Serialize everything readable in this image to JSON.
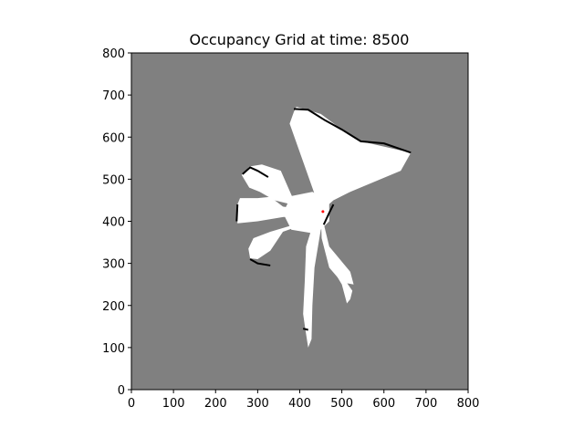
{
  "chart_data": {
    "type": "heatmap",
    "title": "Occupancy Grid at time: 8500",
    "xlabel": "",
    "ylabel": "",
    "xlim": [
      0,
      800
    ],
    "ylim": [
      0,
      800
    ],
    "x_ticks": [
      0,
      100,
      200,
      300,
      400,
      500,
      600,
      700,
      800
    ],
    "y_ticks": [
      0,
      100,
      200,
      300,
      400,
      500,
      600,
      700,
      800
    ],
    "grid": false,
    "colors": {
      "unknown": "#808080",
      "free": "#ffffff",
      "occupied": "#000000",
      "robot": "#ff0000"
    },
    "robot_position": [
      455,
      423
    ],
    "free_regions": [
      {
        "name": "north-east-sector",
        "points": [
          [
            450,
            423
          ],
          [
            376,
            632
          ],
          [
            386,
            660
          ],
          [
            392,
            672
          ],
          [
            450,
            655
          ],
          [
            500,
            618
          ],
          [
            545,
            590
          ],
          [
            664,
            563
          ],
          [
            640,
            520
          ],
          [
            520,
            470
          ],
          [
            480,
            450
          ]
        ]
      },
      {
        "name": "north-west-lobe",
        "points": [
          [
            450,
            423
          ],
          [
            390,
            440
          ],
          [
            355,
            520
          ],
          [
            310,
            535
          ],
          [
            280,
            530
          ],
          [
            262,
            510
          ],
          [
            280,
            480
          ],
          [
            305,
            470
          ],
          [
            340,
            450
          ]
        ]
      },
      {
        "name": "west-arm",
        "points": [
          [
            450,
            423
          ],
          [
            420,
            425
          ],
          [
            360,
            435
          ],
          [
            330,
            458
          ],
          [
            300,
            455
          ],
          [
            258,
            455
          ],
          [
            250,
            435
          ],
          [
            252,
            395
          ],
          [
            300,
            400
          ],
          [
            360,
            410
          ],
          [
            430,
            415
          ]
        ]
      },
      {
        "name": "south-west-lobe",
        "points": [
          [
            450,
            423
          ],
          [
            430,
            400
          ],
          [
            360,
            375
          ],
          [
            330,
            330
          ],
          [
            300,
            310
          ],
          [
            282,
            312
          ],
          [
            278,
            335
          ],
          [
            290,
            360
          ],
          [
            330,
            375
          ],
          [
            380,
            390
          ]
        ]
      },
      {
        "name": "south-arm",
        "points": [
          [
            440,
            420
          ],
          [
            415,
            340
          ],
          [
            412,
            260
          ],
          [
            408,
            180
          ],
          [
            413,
            145
          ],
          [
            420,
            100
          ],
          [
            428,
            120
          ],
          [
            430,
            200
          ],
          [
            435,
            290
          ],
          [
            450,
            380
          ]
        ]
      },
      {
        "name": "south-east-beam",
        "points": [
          [
            450,
            423
          ],
          [
            470,
            340
          ],
          [
            520,
            280
          ],
          [
            528,
            250
          ],
          [
            500,
            255
          ],
          [
            470,
            290
          ],
          [
            452,
            360
          ]
        ]
      },
      {
        "name": "south-east-spokes",
        "points": [
          [
            470,
            300
          ],
          [
            500,
            250
          ],
          [
            512,
            205
          ],
          [
            520,
            215
          ],
          [
            525,
            235
          ],
          [
            490,
            285
          ]
        ]
      },
      {
        "name": "center-hub",
        "points": [
          [
            380,
            380
          ],
          [
            440,
            370
          ],
          [
            470,
            400
          ],
          [
            470,
            450
          ],
          [
            430,
            470
          ],
          [
            380,
            460
          ],
          [
            360,
            420
          ]
        ]
      }
    ],
    "occupied_edges": [
      {
        "name": "north-east-wall",
        "points": [
          [
            386,
            667
          ],
          [
            420,
            665
          ],
          [
            460,
            640
          ],
          [
            500,
            618
          ],
          [
            545,
            590
          ],
          [
            600,
            585
          ],
          [
            650,
            568
          ],
          [
            664,
            563
          ]
        ]
      },
      {
        "name": "north-west-wall",
        "points": [
          [
            264,
            512
          ],
          [
            282,
            528
          ],
          [
            300,
            520
          ],
          [
            325,
            505
          ]
        ]
      },
      {
        "name": "west-wall",
        "points": [
          [
            252,
            440
          ],
          [
            250,
            400
          ]
        ]
      },
      {
        "name": "south-west-wall",
        "points": [
          [
            282,
            310
          ],
          [
            300,
            300
          ],
          [
            330,
            295
          ]
        ]
      },
      {
        "name": "south-wall",
        "points": [
          [
            408,
            145
          ],
          [
            420,
            142
          ]
        ]
      },
      {
        "name": "east-wall",
        "points": [
          [
            457,
            392
          ],
          [
            470,
            420
          ],
          [
            480,
            440
          ]
        ]
      }
    ]
  }
}
